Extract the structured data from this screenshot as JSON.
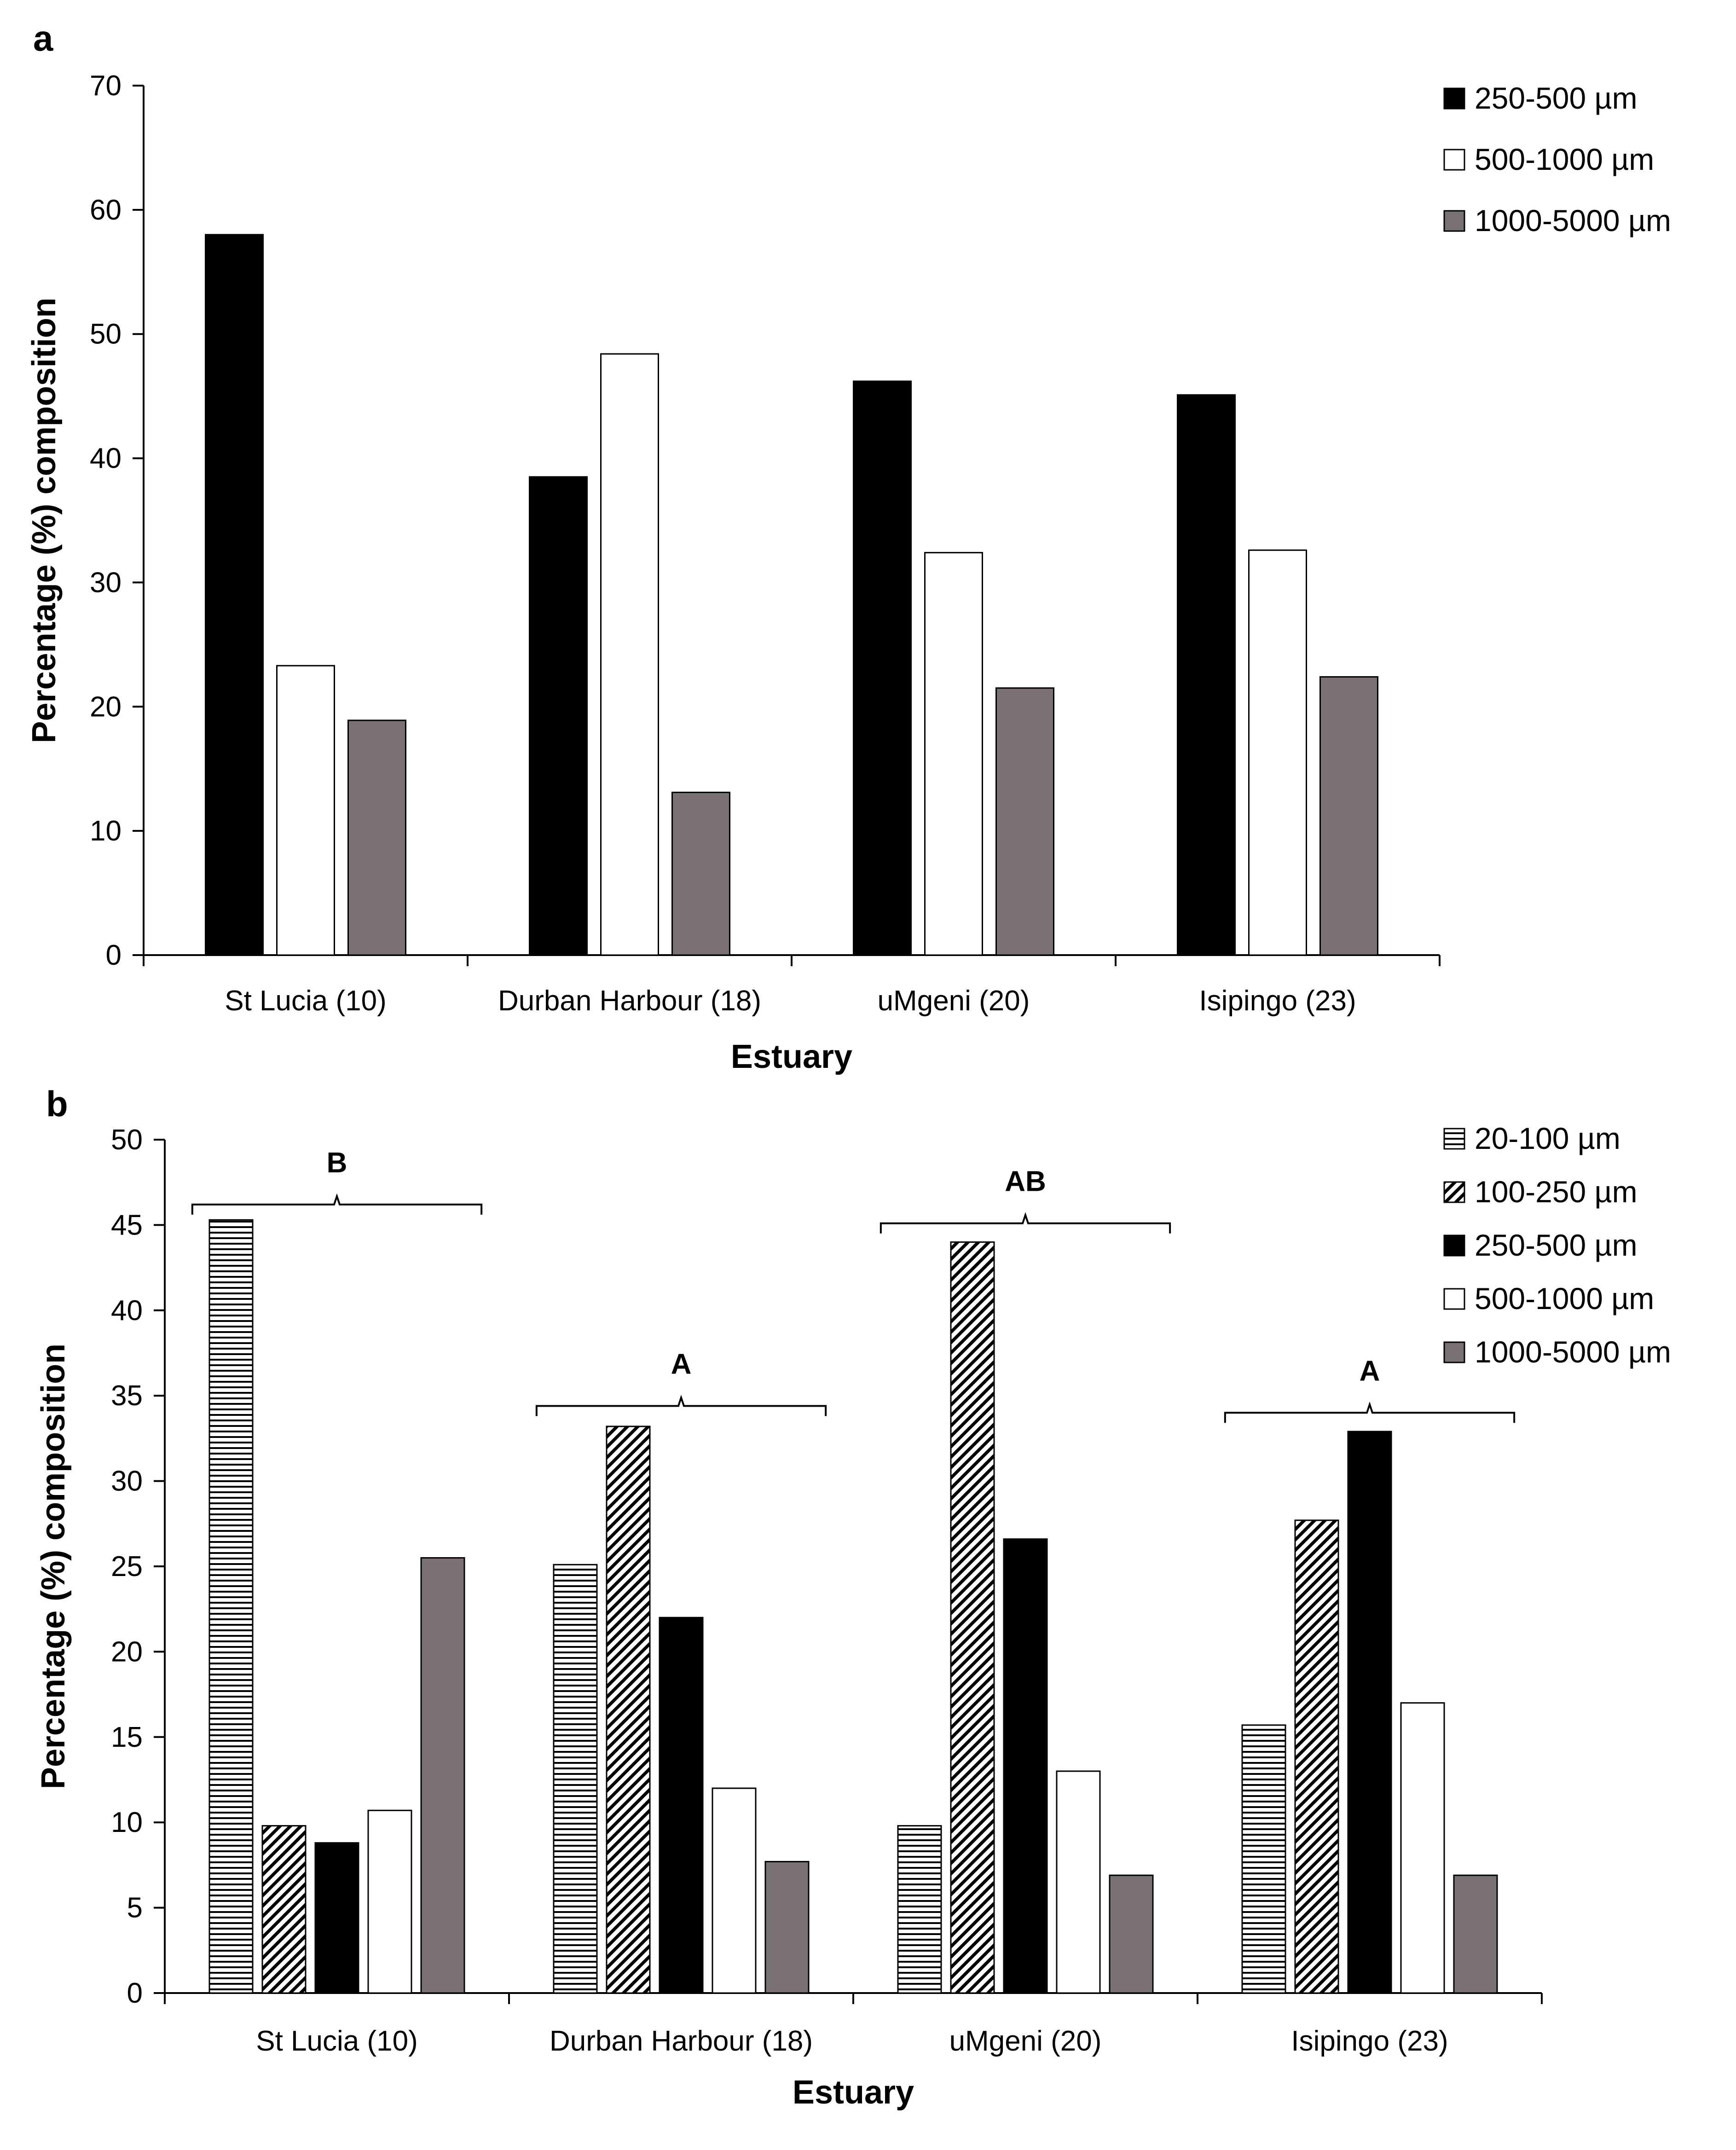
{
  "chart_data": [
    {
      "panel": "a",
      "type": "bar",
      "title": "",
      "xlabel": "Estuary",
      "ylabel": "Percentage (%) composition",
      "categories": [
        "St Lucia (10)",
        "Durban Harbour (18)",
        "uMgeni (20)",
        "Isipingo (23)"
      ],
      "ylim": [
        0,
        70
      ],
      "yticks": [
        "0",
        "10",
        "20",
        "30",
        "40",
        "50",
        "60",
        "70"
      ],
      "grid": false,
      "legend_position": "top-right",
      "series": [
        {
          "name": "250-500 µm",
          "fill": "#000000",
          "pattern": "solid",
          "values": [
            58.0,
            38.5,
            46.2,
            45.1
          ]
        },
        {
          "name": "500-1000 µm",
          "fill": "#ffffff",
          "pattern": "solid",
          "values": [
            23.3,
            48.4,
            32.4,
            32.6
          ]
        },
        {
          "name": "1000-5000 µm",
          "fill": "#7a7272",
          "pattern": "solid",
          "values": [
            18.9,
            13.1,
            21.5,
            22.4
          ]
        }
      ]
    },
    {
      "panel": "b",
      "type": "bar",
      "title": "",
      "xlabel": "Estuary",
      "ylabel": "Percentage (%) composition",
      "categories": [
        "St Lucia (10)",
        "Durban Harbour (18)",
        "uMgeni (20)",
        "Isipingo (23)"
      ],
      "ylim": [
        0,
        50
      ],
      "yticks": [
        "0",
        "5",
        "10",
        "15",
        "20",
        "25",
        "30",
        "35",
        "40",
        "45",
        "50"
      ],
      "grid": false,
      "legend_position": "top-right",
      "series": [
        {
          "name": "20-100 µm",
          "fill": "#ffffff",
          "pattern": "horizontal-lines",
          "values": [
            45.3,
            25.1,
            9.8,
            15.7
          ]
        },
        {
          "name": "100-250 µm",
          "fill": "#ffffff",
          "pattern": "diagonal-hatch",
          "values": [
            9.8,
            33.2,
            44.0,
            27.7
          ]
        },
        {
          "name": "250-500 µm",
          "fill": "#000000",
          "pattern": "solid",
          "values": [
            8.8,
            22.0,
            26.6,
            32.9
          ]
        },
        {
          "name": "500-1000 µm",
          "fill": "#ffffff",
          "pattern": "solid",
          "values": [
            10.7,
            12.0,
            13.0,
            17.0
          ]
        },
        {
          "name": "1000-5000 µm",
          "fill": "#7a7272",
          "pattern": "solid",
          "values": [
            25.5,
            7.7,
            6.9,
            6.9
          ]
        }
      ],
      "annotations": [
        {
          "category": "St Lucia (10)",
          "label": "B",
          "bracket_value": 46.2
        },
        {
          "category": "Durban Harbour (18)",
          "label": "A",
          "bracket_value": 34.4
        },
        {
          "category": "uMgeni (20)",
          "label": "AB",
          "bracket_value": 45.1
        },
        {
          "category": "Isipingo (23)",
          "label": "A",
          "bracket_value": 34.0
        }
      ]
    }
  ]
}
